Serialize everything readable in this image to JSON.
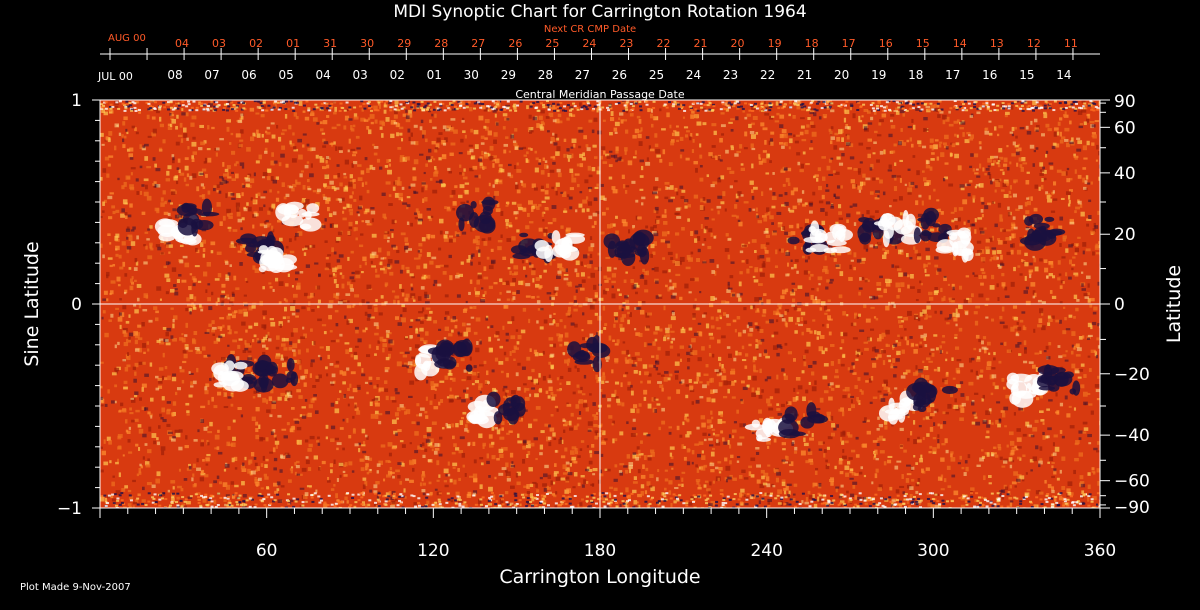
{
  "chart_data": {
    "type": "heatmap",
    "title": "MDI Synoptic Chart for Carrington Rotation 1964",
    "xlabel": "Carrington Longitude",
    "ylabel_left": "Sine Latitude",
    "ylabel_right": "Latitude",
    "xlim": [
      0,
      360
    ],
    "ylim": [
      -1,
      1
    ],
    "x_ticks": [
      60,
      120,
      180,
      240,
      300,
      360
    ],
    "y_ticks_left": [
      {
        "value": 1,
        "label": "1"
      },
      {
        "value": 0,
        "label": "0"
      },
      {
        "value": -1,
        "label": "−1"
      }
    ],
    "y_ticks_right": [
      90,
      60,
      40,
      20,
      0,
      -20,
      -40,
      -60,
      -90
    ],
    "reference_lines": {
      "x": 180,
      "y": 0
    },
    "next_cr_label": "Next CR CMP Date",
    "next_cr_month": "AUG 00",
    "next_cr_dates": [
      "04",
      "03",
      "02",
      "01",
      "31",
      "30",
      "29",
      "28",
      "27",
      "26",
      "25",
      "24",
      "23",
      "22",
      "21",
      "20",
      "19",
      "18",
      "17",
      "16",
      "15",
      "14",
      "13",
      "12",
      "11"
    ],
    "cmp_label": "Central Meridian Passage Date",
    "cmp_month": "JUL 00",
    "cmp_dates": [
      "08",
      "07",
      "06",
      "05",
      "04",
      "03",
      "02",
      "01",
      "30",
      "29",
      "28",
      "27",
      "26",
      "25",
      "24",
      "23",
      "22",
      "21",
      "20",
      "19",
      "18",
      "17",
      "16",
      "15",
      "14"
    ],
    "active_regions": [
      {
        "lon": 28,
        "sinlat": 0.35,
        "polarity": "positive"
      },
      {
        "lon": 35,
        "sinlat": 0.42,
        "polarity": "negative"
      },
      {
        "lon": 58,
        "sinlat": 0.28,
        "polarity": "negative"
      },
      {
        "lon": 63,
        "sinlat": 0.22,
        "polarity": "positive"
      },
      {
        "lon": 72,
        "sinlat": 0.43,
        "polarity": "positive"
      },
      {
        "lon": 135,
        "sinlat": 0.44,
        "polarity": "negative"
      },
      {
        "lon": 157,
        "sinlat": 0.28,
        "polarity": "negative"
      },
      {
        "lon": 165,
        "sinlat": 0.3,
        "polarity": "positive"
      },
      {
        "lon": 190,
        "sinlat": 0.28,
        "polarity": "negative"
      },
      {
        "lon": 253,
        "sinlat": 0.33,
        "polarity": "negative"
      },
      {
        "lon": 262,
        "sinlat": 0.32,
        "polarity": "positive"
      },
      {
        "lon": 280,
        "sinlat": 0.37,
        "polarity": "negative"
      },
      {
        "lon": 288,
        "sinlat": 0.37,
        "polarity": "positive"
      },
      {
        "lon": 300,
        "sinlat": 0.38,
        "polarity": "negative"
      },
      {
        "lon": 310,
        "sinlat": 0.3,
        "polarity": "positive"
      },
      {
        "lon": 340,
        "sinlat": 0.36,
        "polarity": "negative"
      },
      {
        "lon": 50,
        "sinlat": -0.33,
        "polarity": "negative"
      },
      {
        "lon": 47,
        "sinlat": -0.35,
        "polarity": "positive"
      },
      {
        "lon": 64,
        "sinlat": -0.34,
        "polarity": "negative"
      },
      {
        "lon": 120,
        "sinlat": -0.28,
        "polarity": "positive"
      },
      {
        "lon": 127,
        "sinlat": -0.26,
        "polarity": "negative"
      },
      {
        "lon": 138,
        "sinlat": -0.52,
        "polarity": "positive"
      },
      {
        "lon": 147,
        "sinlat": -0.52,
        "polarity": "negative"
      },
      {
        "lon": 176,
        "sinlat": -0.24,
        "polarity": "negative"
      },
      {
        "lon": 241,
        "sinlat": -0.64,
        "polarity": "positive"
      },
      {
        "lon": 253,
        "sinlat": -0.58,
        "polarity": "negative"
      },
      {
        "lon": 290,
        "sinlat": -0.5,
        "polarity": "positive"
      },
      {
        "lon": 300,
        "sinlat": -0.46,
        "polarity": "negative"
      },
      {
        "lon": 333,
        "sinlat": -0.42,
        "polarity": "positive"
      },
      {
        "lon": 346,
        "sinlat": -0.37,
        "polarity": "negative"
      }
    ]
  },
  "footer": {
    "plot_made": "Plot Made  9-Nov-2007"
  },
  "colors": {
    "background": "#000000",
    "axis": "#ffffff",
    "next_cr_text": "#ff5a28",
    "field_base": "#d83a10",
    "field_mid": "#f07020",
    "field_light": "#ffc850",
    "positive": "#ffffff",
    "negative": "#1a1040"
  }
}
